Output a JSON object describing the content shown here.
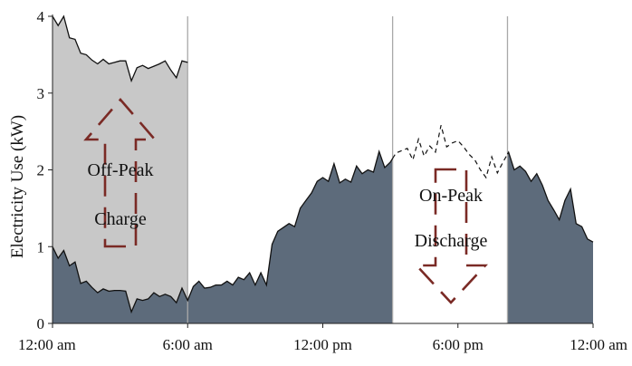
{
  "chart_data": {
    "type": "area",
    "xlabel": "",
    "ylabel": "Electricity Use (kW)",
    "ylim": [
      0,
      4
    ],
    "xlim_hours": [
      0,
      24
    ],
    "yticks": [
      0,
      1,
      2,
      3,
      4
    ],
    "xticks": [
      {
        "hour": 0,
        "label": "12:00 am"
      },
      {
        "hour": 6,
        "label": "6:00 am"
      },
      {
        "hour": 12,
        "label": "12:00 pm"
      },
      {
        "hour": 18,
        "label": "6:00 pm"
      },
      {
        "hour": 24,
        "label": "12:00 am"
      }
    ],
    "grid": false,
    "vertical_lines_hours": [
      6,
      15.1,
      20.2
    ],
    "baseline_load": {
      "x_hours": [
        0,
        0.25,
        0.5,
        0.75,
        1,
        1.25,
        1.5,
        1.75,
        2,
        2.25,
        2.5,
        2.75,
        3,
        3.25,
        3.5,
        3.75,
        4,
        4.25,
        4.5,
        4.75,
        5,
        5.25,
        5.5,
        5.75,
        6,
        6.25,
        6.5,
        6.75,
        7,
        7.25,
        7.5,
        7.75,
        8,
        8.25,
        8.5,
        8.75,
        9,
        9.25,
        9.5,
        9.75,
        10,
        10.25,
        10.5,
        10.75,
        11,
        11.25,
        11.5,
        11.75,
        12,
        12.25,
        12.5,
        12.75,
        13,
        13.25,
        13.5,
        13.75,
        14,
        14.25,
        14.5,
        14.75,
        15,
        15.25,
        15.5,
        15.75,
        16,
        16.25,
        16.5,
        16.75,
        17,
        17.25,
        17.5,
        17.75,
        18,
        18.25,
        18.5,
        18.75,
        19,
        19.25,
        19.5,
        19.75,
        20,
        20.25,
        20.5,
        20.75,
        21,
        21.25,
        21.5,
        21.75,
        22,
        22.25,
        22.5,
        22.75,
        23,
        23.25,
        23.5,
        23.75,
        24
      ],
      "values": [
        1.0,
        0.85,
        0.95,
        0.75,
        0.8,
        0.52,
        0.55,
        0.47,
        0.4,
        0.45,
        0.42,
        0.43,
        0.43,
        0.42,
        0.15,
        0.32,
        0.3,
        0.32,
        0.4,
        0.35,
        0.38,
        0.35,
        0.27,
        0.46,
        0.3,
        0.48,
        0.55,
        0.46,
        0.47,
        0.5,
        0.5,
        0.55,
        0.5,
        0.6,
        0.57,
        0.66,
        0.5,
        0.66,
        0.5,
        1.03,
        1.2,
        1.25,
        1.3,
        1.26,
        1.5,
        1.6,
        1.7,
        1.85,
        1.9,
        1.85,
        2.08,
        1.83,
        1.88,
        1.84,
        2.05,
        1.95,
        2.0,
        1.97,
        2.24,
        2.03,
        2.1,
        2.22,
        2.25,
        2.28,
        2.13,
        2.4,
        2.18,
        2.31,
        2.23,
        2.58,
        2.3,
        2.35,
        2.38,
        2.3,
        2.2,
        2.13,
        2.0,
        1.9,
        2.17,
        1.96,
        2.1,
        2.23,
        2.0,
        2.05,
        1.98,
        1.85,
        1.95,
        1.8,
        1.6,
        1.48,
        1.35,
        1.6,
        1.75,
        1.3,
        1.26,
        1.1,
        1.06
      ]
    },
    "charge_top": {
      "x_hours": [
        0,
        0.25,
        0.5,
        0.75,
        1,
        1.25,
        1.5,
        1.75,
        2,
        2.25,
        2.5,
        2.75,
        3,
        3.25,
        3.5,
        3.75,
        4,
        4.25,
        4.5,
        4.75,
        5,
        5.25,
        5.5,
        5.75,
        6
      ],
      "values": [
        4.0,
        3.88,
        4.0,
        3.72,
        3.7,
        3.52,
        3.5,
        3.43,
        3.38,
        3.44,
        3.38,
        3.4,
        3.42,
        3.42,
        3.16,
        3.33,
        3.36,
        3.32,
        3.35,
        3.38,
        3.42,
        3.3,
        3.2,
        3.42,
        3.4
      ]
    },
    "charge_period_hours": [
      0,
      6
    ],
    "discharge_period_hours": [
      15.1,
      20.2
    ],
    "annotations": {
      "charge_line1": "Off-Peak",
      "charge_line2": "Charge",
      "discharge_line1": "On-Peak",
      "discharge_line2": "Discharge"
    },
    "colors": {
      "area_fill": "#5d6b7b",
      "charge_fill": "#c8c8c8",
      "arrow": "#7a2a25",
      "line": "#111111",
      "divider": "#a9a9a9"
    }
  }
}
